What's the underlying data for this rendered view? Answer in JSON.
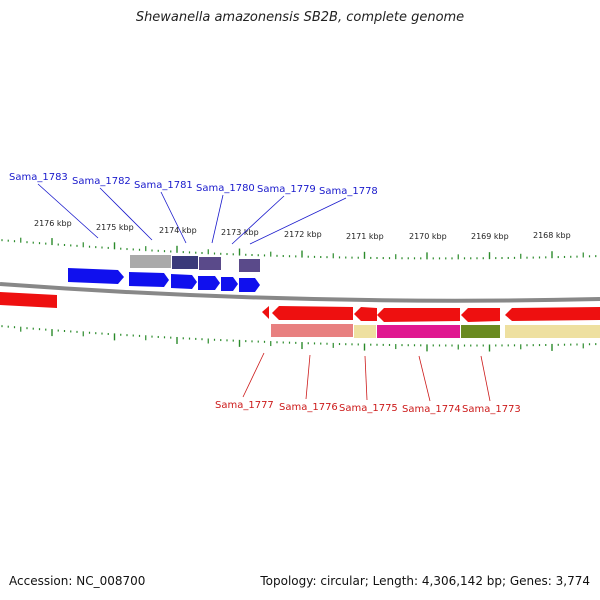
{
  "title": "Shewanella amazonensis SB2B, complete genome",
  "accession": "Accession: NC_008700",
  "summary": "Topology: circular; Length: 4,306,142 bp; Genes: 3,774",
  "kbp_labels": [
    "2176 kbp",
    "2175 kbp",
    "2174 kbp",
    "2173 kbp",
    "2172 kbp",
    "2171 kbp",
    "2170 kbp",
    "2169 kbp",
    "2168 kbp"
  ],
  "genes_top": [
    "Sama_1783",
    "Sama_1782",
    "Sama_1781",
    "Sama_1780",
    "Sama_1779",
    "Sama_1778"
  ],
  "genes_bottom": [
    "Sama_1777",
    "Sama_1776",
    "Sama_1775",
    "Sama_1774",
    "Sama_1773"
  ],
  "colors": {
    "forward_strand": "#1010ee",
    "reverse_strand": "#ee1010",
    "backbone": "#888888",
    "ticks": "#2a8a2a",
    "cog_gray": "#aaaaaa",
    "cog_navy": "#3a3a7a",
    "cog_purple": "#5a4a8a",
    "cog_salmon": "#e88080",
    "cog_khaki": "#eee0a0",
    "cog_magenta": "#e01890",
    "cog_olive": "#6a8a20"
  }
}
